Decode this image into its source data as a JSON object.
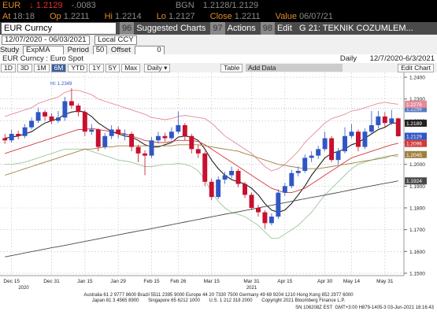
{
  "ui": {
    "ticker": "EUR",
    "last": "↓ 1.2129",
    "change": "-.0083",
    "source": "BGN",
    "bid_ask": "1.2128/1.2129",
    "at_label": "At",
    "at": "18:18",
    "op_label": "Op",
    "op": "1.2211",
    "hi_label": "Hi",
    "hi": "1.2214",
    "lo_label": "Lo",
    "lo": "1.2127",
    "close_label": "Close",
    "close": "1.2211",
    "value_label": "Value",
    "value": "06/07/21",
    "security": "EUR Curncy",
    "menu": [
      {
        "num": "96",
        "label": "Suggested Charts"
      },
      {
        "num": "97",
        "label": "Actions"
      },
      {
        "num": "98",
        "label": "Edit"
      }
    ],
    "page_title": "G 21: TEKNIK COZUMLEM...",
    "date_range": "12/07/2020 - 06/03/2021",
    "currency": "Local CCY",
    "study_label": "Study",
    "study": "ExpMA",
    "period_label": "Period",
    "period": "50",
    "offset_label": "Offset",
    "offset": "0",
    "chart_name": "EUR Curncy : Euro Spot",
    "frequency": "Daily",
    "range": "12/7/2020-6/3/2021",
    "buttons": [
      "1D",
      "3D",
      "1M",
      "6M",
      "YTD",
      "1Y",
      "5Y",
      "Max"
    ],
    "interval": "Daily ▾",
    "table": "Table",
    "add_data": "Add Data",
    "edit_chart": "Edit Chart",
    "footer": [
      "Australia 61 2 9777 8600 Brazil 5511 2395 9000 Europe 44 20 7330 7500 Germany 49 69 9204 1210 Hong Kong 852 2977 6000",
      "Japan 81 3 4565 8900       Singapore 65 6212 1000       U.S. 1 212 318 2000       Copyright 2021 Bloomberg Finance L.P.",
      "SN 106208Z EST  GMT+3:00 H879-1405-3 03-Jun-2021 18:16:43"
    ]
  },
  "chart_data": {
    "type": "candlestick",
    "categories": [
      null,
      "Dec 15",
      null,
      null,
      null,
      null,
      null,
      "Dec 31",
      null,
      null,
      null,
      null,
      "Jan 15",
      null,
      null,
      null,
      null,
      "Jan 29",
      null,
      null,
      null,
      null,
      "Feb 15",
      null,
      null,
      null,
      "Feb 26",
      null,
      null,
      null,
      null,
      "Mar 15",
      null,
      null,
      null,
      null,
      null,
      "Mar 31",
      null,
      null,
      null,
      null,
      "Apr 15",
      null,
      null,
      null,
      null,
      null,
      "Apr 30",
      null,
      null,
      null,
      "May 14",
      null,
      null,
      null,
      null,
      "May 31",
      null,
      null
    ],
    "years": [
      "2020",
      "2021"
    ],
    "open": [
      1.212,
      1.211,
      1.214,
      1.213,
      1.217,
      1.22,
      1.224,
      1.222,
      1.22,
      1.2215,
      1.229,
      1.227,
      1.224,
      1.215,
      1.216,
      1.208,
      1.213,
      1.216,
      1.214,
      1.214,
      1.208,
      1.205,
      1.204,
      1.211,
      1.213,
      1.212,
      1.215,
      1.218,
      1.213,
      1.207,
      1.205,
      1.192,
      1.185,
      1.193,
      1.195,
      1.197,
      1.191,
      1.186,
      1.18,
      1.178,
      1.173,
      1.176,
      1.187,
      1.19,
      1.196,
      1.197,
      1.203,
      1.204,
      1.207,
      1.212,
      1.202,
      1.206,
      1.213,
      1.215,
      1.208,
      1.215,
      1.218,
      1.222,
      1.219,
      1.2211
    ],
    "high": [
      1.214,
      1.216,
      1.2155,
      1.2185,
      1.2215,
      1.226,
      1.225,
      1.2235,
      1.2245,
      1.231,
      1.2349,
      1.228,
      1.225,
      1.2185,
      1.2165,
      1.2145,
      1.218,
      1.2175,
      1.216,
      1.215,
      1.209,
      1.2065,
      1.2125,
      1.215,
      1.2145,
      1.217,
      1.2243,
      1.219,
      1.214,
      1.209,
      1.206,
      1.1935,
      1.1945,
      1.1965,
      1.199,
      1.198,
      1.192,
      1.187,
      1.1815,
      1.179,
      1.1775,
      1.1885,
      1.1915,
      1.1975,
      1.199,
      1.2045,
      1.206,
      1.2085,
      1.215,
      1.213,
      1.2075,
      1.217,
      1.2185,
      1.216,
      1.2165,
      1.2245,
      1.2245,
      1.224,
      1.225,
      1.2214
    ],
    "low": [
      1.2095,
      1.21,
      1.2115,
      1.212,
      1.216,
      1.219,
      1.22,
      1.2185,
      1.219,
      1.22,
      1.2255,
      1.222,
      1.213,
      1.2135,
      1.206,
      1.207,
      1.2115,
      1.212,
      1.211,
      1.206,
      1.201,
      1.195,
      1.203,
      1.2095,
      1.2105,
      1.211,
      1.214,
      1.211,
      1.205,
      1.203,
      1.19,
      1.1835,
      1.184,
      1.191,
      1.1935,
      1.1895,
      1.1845,
      1.179,
      1.176,
      1.1704,
      1.172,
      1.175,
      1.1855,
      1.189,
      1.1945,
      1.196,
      1.201,
      1.2025,
      1.206,
      1.201,
      1.2,
      1.205,
      1.212,
      1.206,
      1.207,
      1.214,
      1.2165,
      1.217,
      1.218,
      1.2127
    ],
    "close": [
      1.211,
      1.214,
      1.213,
      1.217,
      1.22,
      1.224,
      1.222,
      1.22,
      1.2215,
      1.229,
      1.227,
      1.224,
      1.215,
      1.216,
      1.208,
      1.213,
      1.216,
      1.214,
      1.214,
      1.208,
      1.205,
      1.204,
      1.211,
      1.213,
      1.212,
      1.215,
      1.218,
      1.213,
      1.207,
      1.205,
      1.192,
      1.185,
      1.193,
      1.195,
      1.197,
      1.191,
      1.186,
      1.18,
      1.178,
      1.173,
      1.176,
      1.187,
      1.19,
      1.196,
      1.197,
      1.203,
      1.204,
      1.207,
      1.212,
      1.202,
      1.206,
      1.213,
      1.215,
      1.208,
      1.215,
      1.218,
      1.222,
      1.219,
      1.2211,
      1.2129
    ],
    "up_color": "#2f57c4",
    "down_color": "#c8102e",
    "last_label": "1.2129",
    "last_color": "#2f57c4",
    "price_line": {
      "value": 1.2256,
      "label": "1.2256",
      "color": "#5a78c0"
    },
    "annotation": "Hi: 1.2349",
    "series": [
      {
        "color": "#e58a9a",
        "last_label": "1.2276",
        "values": [
          1.222,
          1.223,
          1.224,
          1.225,
          1.226,
          1.228,
          1.229,
          1.23,
          1.231,
          1.233,
          1.234,
          1.234,
          1.233,
          1.232,
          1.23,
          1.229,
          1.228,
          1.227,
          1.226,
          1.225,
          1.224,
          1.223,
          1.2215,
          1.221,
          1.2205,
          1.221,
          1.222,
          1.2225,
          1.222,
          1.2215,
          1.221,
          1.219,
          1.216,
          1.213,
          1.211,
          1.209,
          1.207,
          1.205,
          1.202,
          1.199,
          1.197,
          1.198,
          1.2,
          1.203,
          1.206,
          1.21,
          1.213,
          1.216,
          1.219,
          1.221,
          1.222,
          1.223,
          1.2245,
          1.225,
          1.226,
          1.227,
          1.228,
          1.2285,
          1.228,
          1.2276
        ]
      },
      {
        "color": "#9bc89b",
        "values": [
          1.2,
          1.2,
          1.2005,
          1.201,
          1.202,
          1.203,
          1.204,
          1.205,
          1.206,
          1.207,
          1.207,
          1.207,
          1.207,
          1.206,
          1.205,
          1.204,
          1.203,
          1.202,
          1.2015,
          1.201,
          1.2,
          1.199,
          1.199,
          1.1995,
          1.2,
          1.2,
          1.2005,
          1.2,
          1.199,
          1.197,
          1.193,
          1.187,
          1.183,
          1.18,
          1.178,
          1.177,
          1.176,
          1.174,
          1.172,
          1.169,
          1.166,
          1.166,
          1.168,
          1.17,
          1.172,
          1.175,
          1.178,
          1.182,
          1.186,
          1.189,
          1.192,
          1.195,
          1.198,
          1.2,
          1.201,
          1.202,
          1.203,
          1.2035,
          1.204,
          1.2035
        ]
      },
      {
        "color": "#222222",
        "last_label": "1.2189",
        "values": [
          1.212,
          1.2125,
          1.213,
          1.214,
          1.215,
          1.217,
          1.219,
          1.22,
          1.221,
          1.223,
          1.224,
          1.2245,
          1.224,
          1.222,
          1.219,
          1.217,
          1.215,
          1.214,
          1.213,
          1.2125,
          1.211,
          1.209,
          1.208,
          1.208,
          1.209,
          1.21,
          1.2125,
          1.213,
          1.2125,
          1.211,
          1.207,
          1.202,
          1.198,
          1.195,
          1.193,
          1.192,
          1.191,
          1.189,
          1.186,
          1.182,
          1.179,
          1.178,
          1.179,
          1.182,
          1.186,
          1.19,
          1.195,
          1.199,
          1.203,
          1.205,
          1.206,
          1.207,
          1.209,
          1.21,
          1.212,
          1.214,
          1.216,
          1.217,
          1.219,
          1.2189
        ]
      },
      {
        "color": "#d03a3a",
        "last_label": "1.2096",
        "values": [
          1.205,
          1.206,
          1.207,
          1.208,
          1.209,
          1.21,
          1.211,
          1.212,
          1.213,
          1.214,
          1.215,
          1.216,
          1.216,
          1.2165,
          1.216,
          1.2155,
          1.215,
          1.2145,
          1.214,
          1.213,
          1.212,
          1.211,
          1.2105,
          1.21,
          1.21,
          1.2105,
          1.211,
          1.211,
          1.211,
          1.2105,
          1.209,
          1.207,
          1.205,
          1.203,
          1.201,
          1.199,
          1.197,
          1.195,
          1.193,
          1.191,
          1.189,
          1.188,
          1.187,
          1.187,
          1.188,
          1.189,
          1.191,
          1.193,
          1.195,
          1.197,
          1.199,
          1.201,
          1.203,
          1.204,
          1.205,
          1.206,
          1.207,
          1.208,
          1.209,
          1.2096
        ]
      },
      {
        "color": "#a08040",
        "last_label": "1.2045",
        "values": [
          1.195,
          1.196,
          1.197,
          1.198,
          1.199,
          1.2,
          1.201,
          1.202,
          1.203,
          1.204,
          1.205,
          1.206,
          1.207,
          1.207,
          1.2075,
          1.208,
          1.208,
          1.2085,
          1.2085,
          1.2085,
          1.2085,
          1.2085,
          1.2085,
          1.2085,
          1.2085,
          1.2085,
          1.209,
          1.209,
          1.209,
          1.209,
          1.2085,
          1.208,
          1.2075,
          1.207,
          1.2065,
          1.206,
          1.205,
          1.204,
          1.203,
          1.202,
          1.201,
          1.2,
          1.1995,
          1.199,
          1.1985,
          1.198,
          1.198,
          1.198,
          1.1985,
          1.199,
          1.1995,
          1.2,
          1.2005,
          1.201,
          1.2015,
          1.202,
          1.2025,
          1.203,
          1.204,
          1.2045
        ]
      },
      {
        "color": "#4a4a4a",
        "last_label": "1.1924",
        "values": [
          1.1575,
          1.1581,
          1.1587,
          1.1593,
          1.1599,
          1.1605,
          1.1611,
          1.1617,
          1.1622,
          1.1628,
          1.1634,
          1.164,
          1.1646,
          1.1652,
          1.1658,
          1.1664,
          1.167,
          1.1676,
          1.1682,
          1.1688,
          1.1694,
          1.1699,
          1.1705,
          1.1711,
          1.1717,
          1.1723,
          1.1729,
          1.1735,
          1.1741,
          1.1747,
          1.1753,
          1.1759,
          1.1765,
          1.1771,
          1.1776,
          1.1782,
          1.1788,
          1.1794,
          1.18,
          1.1806,
          1.1812,
          1.1818,
          1.1824,
          1.183,
          1.1836,
          1.1842,
          1.1848,
          1.1853,
          1.1859,
          1.1865,
          1.1871,
          1.1877,
          1.1883,
          1.1889,
          1.1895,
          1.1901,
          1.1907,
          1.1913,
          1.1918,
          1.1924
        ]
      }
    ],
    "ylim": [
      1.1489,
      1.2422
    ],
    "yticks": [
      {
        "value": 1.24,
        "label": "1.2400"
      },
      {
        "value": 1.23,
        "label": "1.2300"
      },
      {
        "value": 1.22,
        "label": "1.2200"
      },
      {
        "value": 1.21,
        "label": "1.2100"
      },
      {
        "value": 1.2,
        "label": "1.2000"
      },
      {
        "value": 1.19,
        "label": "1.1900"
      },
      {
        "value": 1.18,
        "label": "1.1800"
      },
      {
        "value": 1.17,
        "label": "1.1700"
      },
      {
        "value": 1.16,
        "label": "1.1600"
      },
      {
        "value": 1.15,
        "label": "1.1500"
      }
    ],
    "grid": true
  }
}
